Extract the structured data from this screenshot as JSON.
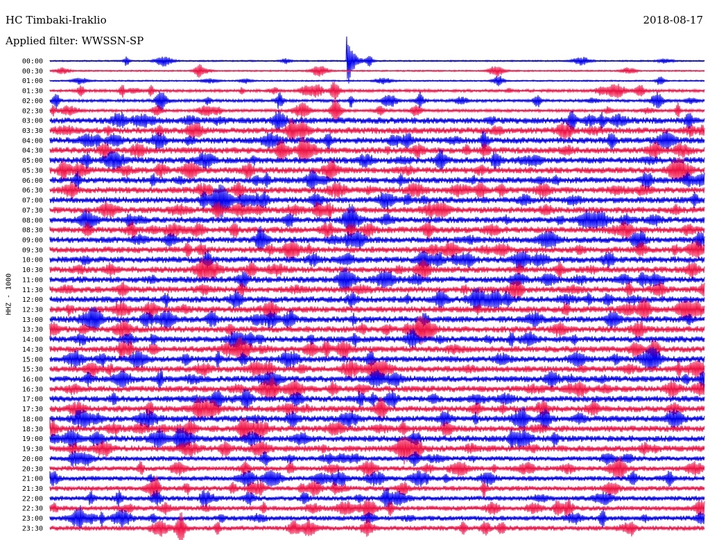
{
  "header": {
    "station": "HC Timbaki-Iraklio",
    "filter": "Applied filter: WWSSN-SP",
    "date": "2018-08-17"
  },
  "chart_data": {
    "type": "line",
    "title": "HC Timbaki-Iraklio",
    "subtitle": "Applied filter: WWSSN-SP",
    "date": "2018-08-17",
    "ylabel": "HHZ - 1000",
    "xlabel": "",
    "grid": false,
    "legend": "none",
    "row_minutes": 30,
    "rows": [
      "00:00",
      "00:30",
      "01:00",
      "01:30",
      "02:00",
      "02:30",
      "03:00",
      "03:30",
      "04:00",
      "04:30",
      "05:00",
      "05:30",
      "06:00",
      "06:30",
      "07:00",
      "07:30",
      "08:00",
      "08:30",
      "09:00",
      "09:30",
      "10:00",
      "10:30",
      "11:00",
      "11:30",
      "12:00",
      "12:30",
      "13:00",
      "13:30",
      "14:00",
      "14:30",
      "15:00",
      "15:30",
      "16:00",
      "16:30",
      "17:00",
      "17:30",
      "18:00",
      "18:30",
      "19:00",
      "19:30",
      "20:00",
      "20:30",
      "21:00",
      "21:30",
      "22:00",
      "22:30",
      "23:00",
      "23:30"
    ],
    "colors": [
      "#0000ee",
      "#ee1144"
    ]
  }
}
